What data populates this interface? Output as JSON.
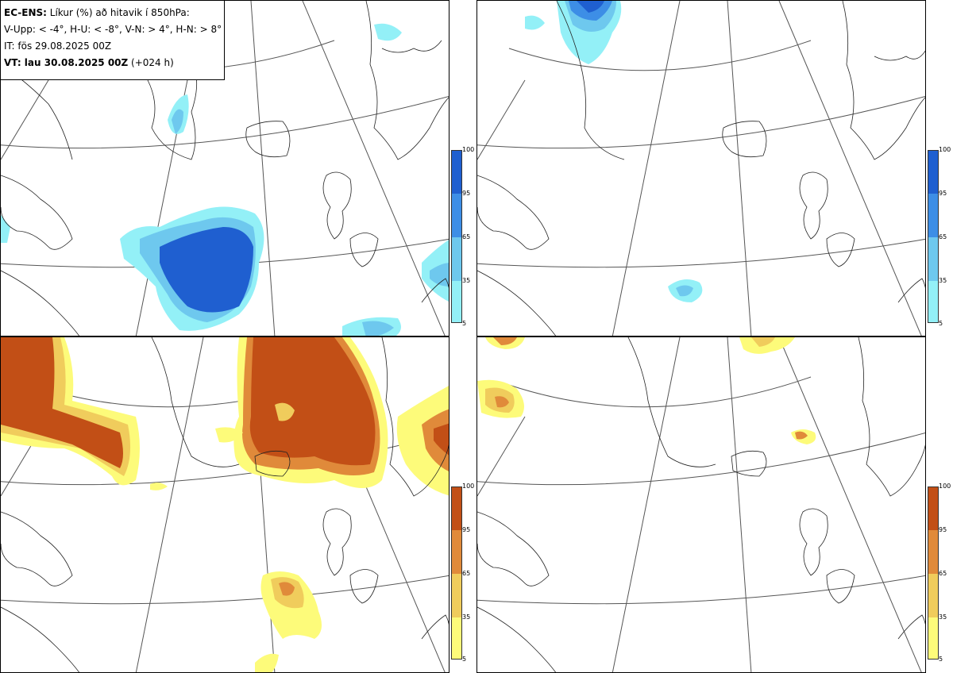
{
  "legend": {
    "line1_bold": "EC-ENS:",
    "line1_rest": "Líkur (%) að hitavik í 850hPa:",
    "line2": "V-Upp: < -4°, H-U: < -8°, V-N: > 4°, H-N: > 8°",
    "line3": "IT: fös 29.08.2025 00Z",
    "line4_bold": "VT: lau 30.08.2025 00Z",
    "line4_rest": "(+024 h)"
  },
  "colorbar": {
    "ticks": [
      "100",
      "95",
      "65",
      "35",
      "5"
    ],
    "cold_colors": [
      "#1f5fd0",
      "#3d8ee6",
      "#6ec8ee",
      "#93f0f7"
    ],
    "warm_colors": [
      "#c24f16",
      "#e08a3a",
      "#f0cc5c",
      "#fdfb7a"
    ]
  },
  "panels": [
    {
      "name": "V-Upp",
      "scheme": "cold"
    },
    {
      "name": "H-U",
      "scheme": "cold"
    },
    {
      "name": "V-N",
      "scheme": "warm"
    },
    {
      "name": "H-N",
      "scheme": "warm"
    }
  ]
}
